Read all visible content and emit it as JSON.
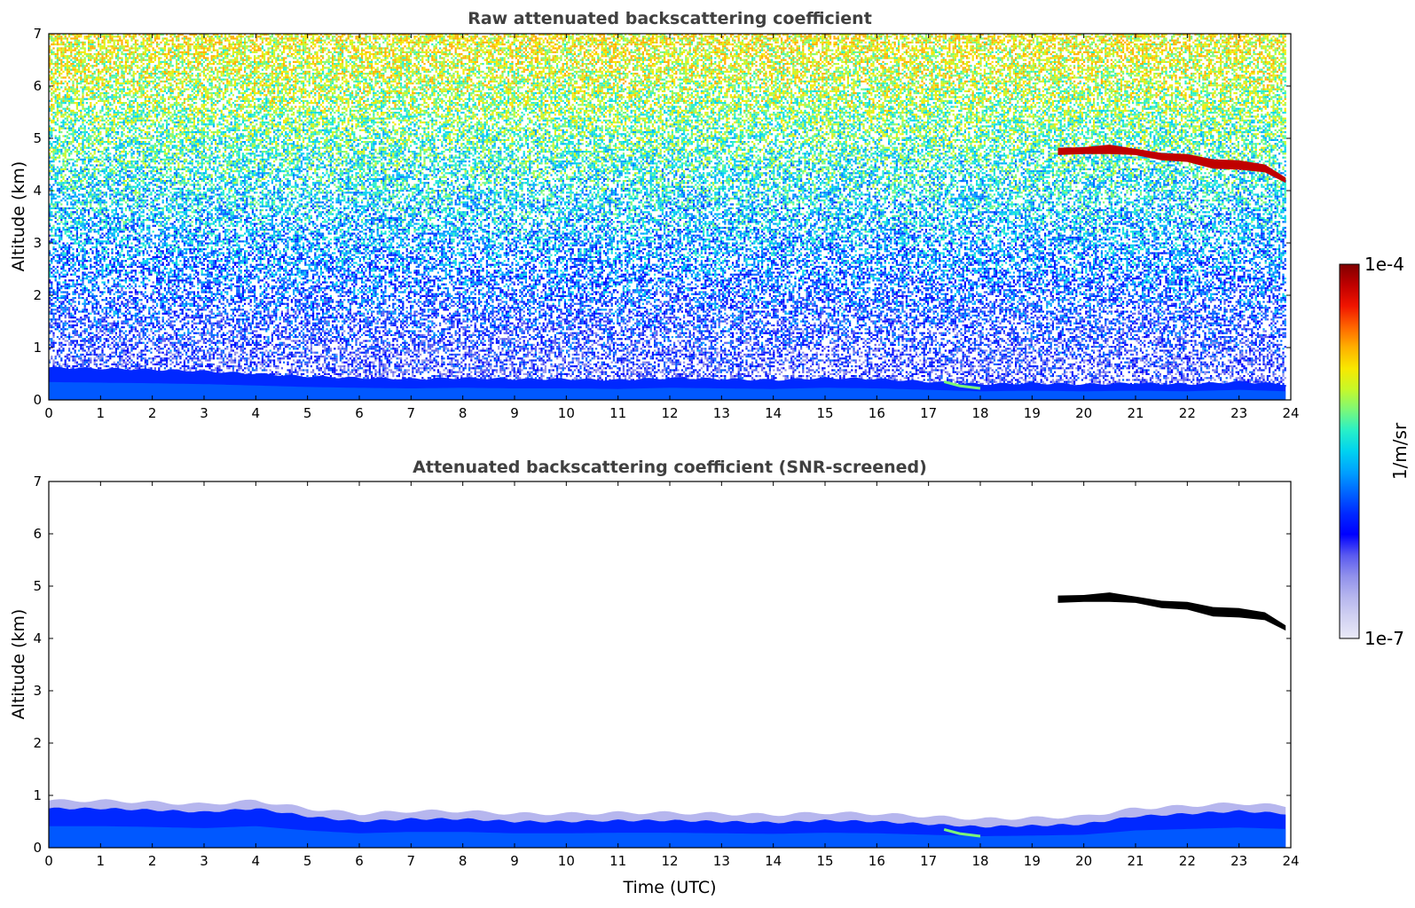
{
  "chart_data": [
    {
      "type": "heatmap",
      "title": "Raw attenuated backscattering coefficient",
      "xlabel": "",
      "ylabel": "Altitude (km)",
      "xlim": [
        0,
        24
      ],
      "ylim": [
        0,
        7
      ],
      "x_ticks": [
        0,
        1,
        2,
        3,
        4,
        5,
        6,
        7,
        8,
        9,
        10,
        11,
        12,
        13,
        14,
        15,
        16,
        17,
        18,
        19,
        20,
        21,
        22,
        23,
        24
      ],
      "y_ticks": [
        0,
        1,
        2,
        3,
        4,
        5,
        6,
        7
      ],
      "noise": "high",
      "boundary_layer": {
        "time": [
          0,
          1,
          2,
          3,
          4,
          5,
          6,
          7,
          8,
          9,
          10,
          11,
          12,
          13,
          14,
          15,
          16,
          17,
          18,
          19,
          20,
          21,
          22,
          23,
          23.9
        ],
        "top_km": [
          0.62,
          0.6,
          0.58,
          0.55,
          0.5,
          0.45,
          0.42,
          0.4,
          0.42,
          0.4,
          0.4,
          0.38,
          0.42,
          0.4,
          0.38,
          0.42,
          0.4,
          0.35,
          0.3,
          0.32,
          0.3,
          0.32,
          0.3,
          0.35,
          0.3
        ]
      },
      "feature_trace": {
        "time": [
          17.3,
          17.6,
          18.0
        ],
        "altitude_km": [
          0.35,
          0.27,
          0.22
        ]
      },
      "cloud": {
        "time": [
          19.5,
          20.0,
          20.5,
          21.0,
          21.5,
          22.0,
          22.5,
          23.0,
          23.5,
          23.9
        ],
        "top_km": [
          4.82,
          4.83,
          4.88,
          4.8,
          4.72,
          4.7,
          4.6,
          4.58,
          4.5,
          4.25
        ],
        "base_km": [
          4.68,
          4.7,
          4.7,
          4.68,
          4.58,
          4.55,
          4.42,
          4.4,
          4.35,
          4.15
        ]
      }
    },
    {
      "type": "heatmap",
      "title": "Attenuated backscattering coefficient (SNR-screened)",
      "xlabel": "Time (UTC)",
      "ylabel": "Altitude (km)",
      "xlim": [
        0,
        24
      ],
      "ylim": [
        0,
        7
      ],
      "x_ticks": [
        0,
        1,
        2,
        3,
        4,
        5,
        6,
        7,
        8,
        9,
        10,
        11,
        12,
        13,
        14,
        15,
        16,
        17,
        18,
        19,
        20,
        21,
        22,
        23,
        24
      ],
      "y_ticks": [
        0,
        1,
        2,
        3,
        4,
        5,
        6,
        7
      ],
      "noise": "screened",
      "boundary_layer": {
        "time": [
          0,
          1,
          2,
          3,
          4,
          5,
          6,
          7,
          8,
          9,
          10,
          11,
          12,
          13,
          14,
          15,
          16,
          17,
          18,
          19,
          20,
          21,
          22,
          23,
          23.9
        ],
        "top_km": [
          0.75,
          0.75,
          0.72,
          0.68,
          0.75,
          0.6,
          0.5,
          0.55,
          0.55,
          0.5,
          0.5,
          0.52,
          0.52,
          0.5,
          0.48,
          0.52,
          0.5,
          0.45,
          0.4,
          0.42,
          0.45,
          0.6,
          0.65,
          0.7,
          0.65
        ]
      },
      "feature_trace": {
        "time": [
          17.3,
          17.6,
          18.0
        ],
        "altitude_km": [
          0.35,
          0.27,
          0.22
        ]
      },
      "cloud": {
        "time": [
          19.5,
          20.0,
          20.5,
          21.0,
          21.5,
          22.0,
          22.5,
          23.0,
          23.5,
          23.9
        ],
        "top_km": [
          4.82,
          4.83,
          4.88,
          4.8,
          4.72,
          4.7,
          4.6,
          4.58,
          4.5,
          4.25
        ],
        "base_km": [
          4.68,
          4.7,
          4.7,
          4.68,
          4.58,
          4.55,
          4.42,
          4.4,
          4.35,
          4.15
        ]
      }
    }
  ],
  "colorbar": {
    "label": "1/m/sr",
    "max_label": "1e-4",
    "min_label": "1e-7",
    "colors": [
      "#eaeaf8",
      "#d2d2f2",
      "#b6b6ee",
      "#9090ec",
      "#5a5af0",
      "#0000ff",
      "#0028ff",
      "#0064ff",
      "#00a0ff",
      "#00d2f0",
      "#28f0c8",
      "#7cf878",
      "#c8f828",
      "#f8e800",
      "#ffb000",
      "#ff6400",
      "#f01400",
      "#c00000",
      "#800000"
    ]
  }
}
